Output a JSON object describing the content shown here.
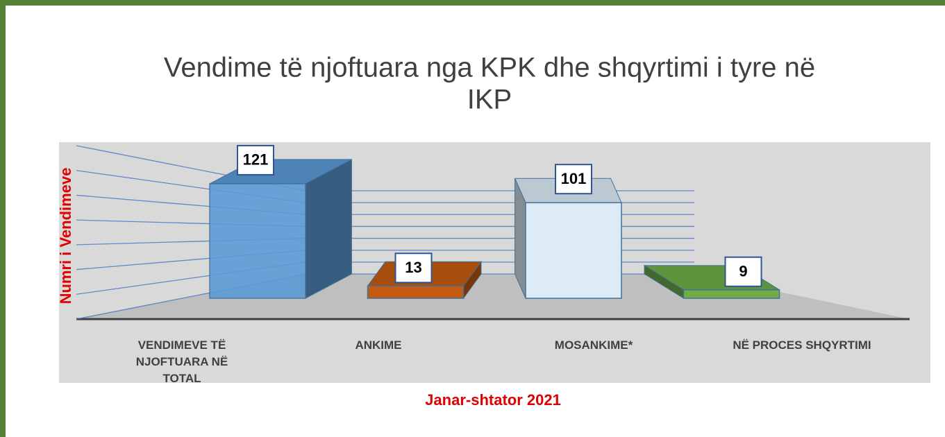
{
  "chart_data": {
    "type": "bar3d",
    "title": "Vendime të njoftuara nga KPK dhe shqyrtimi i tyre në IKP",
    "ylabel": "Numri i Vendimeve",
    "xlabel": "Janar-shtator 2021",
    "categories": [
      "VENDIMEVE TË NJOFTUARA NË TOTAL",
      "ANKIME",
      "MOSANKIME*",
      "NË PROCES SHQYRTIMI"
    ],
    "values": [
      121,
      13,
      101,
      9
    ],
    "colors": [
      "#5b9bd5",
      "#c55a11",
      "#ddebf7",
      "#70ad47"
    ],
    "ylim": [
      0,
      140
    ],
    "yticks": [
      0,
      20,
      40,
      60,
      80,
      100,
      120,
      140
    ],
    "grid": true
  }
}
